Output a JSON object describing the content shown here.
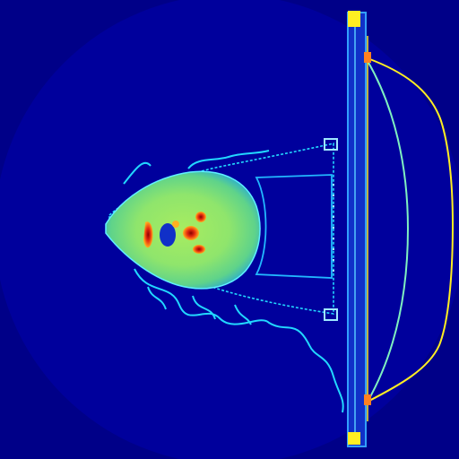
{
  "image": {
    "kind": "axial CT slice (false-color / jet colormap)",
    "colormap": "jet",
    "colors": {
      "background": "#000088",
      "fov_disk": "#00009a",
      "soft_tissue": "#7fe27a",
      "bone": "#e83010",
      "air": "#1030c8",
      "contour": "#22d8ff",
      "board": "#1f6bff",
      "highlight": "#ffee22"
    }
  }
}
